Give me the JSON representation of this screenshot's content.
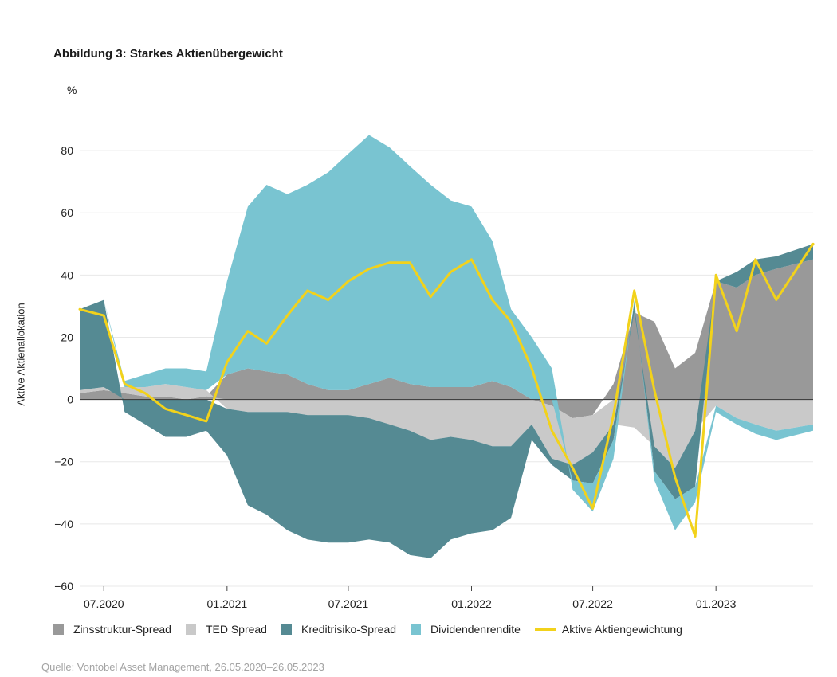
{
  "figure": {
    "title": "Abbildung 3: Starkes Aktienübergewicht",
    "unit": "%",
    "source": "Quelle: Vontobel Asset Management, 26.05.2020–26.05.2023"
  },
  "colors": {
    "zins": "#999999",
    "ted": "#c9c9c9",
    "kredit": "#558a93",
    "div": "#79c4d1",
    "line": "#f2d21b"
  },
  "chart_data": {
    "type": "area",
    "title": "Abbildung 3: Starkes Aktienübergewicht",
    "ylabel": "Aktive Aktienallokation",
    "yunit": "%",
    "ylim": [
      -60,
      90
    ],
    "yticks": [
      80,
      60,
      40,
      20,
      0,
      -20,
      -40,
      -60
    ],
    "ytick_labels": [
      "80",
      "60",
      "40",
      "20",
      "0",
      "−20",
      "−40",
      "−60"
    ],
    "xlim": [
      "2020-05-26",
      "2023-05-26"
    ],
    "xticks": [
      "2020-07-01",
      "2021-01-01",
      "2021-07-01",
      "2022-01-01",
      "2022-07-01",
      "2023-01-01"
    ],
    "xtick_labels": [
      "07.2020",
      "01.2021",
      "07.2021",
      "01.2022",
      "07.2022",
      "01.2023"
    ],
    "grid": "horizontal",
    "legend_position": "bottom",
    "x": [
      "2020-05-26",
      "2020-07-01",
      "2020-08-01",
      "2020-09-01",
      "2020-10-01",
      "2020-11-01",
      "2020-12-01",
      "2021-01-01",
      "2021-02-01",
      "2021-03-01",
      "2021-04-01",
      "2021-05-01",
      "2021-06-01",
      "2021-07-01",
      "2021-08-01",
      "2021-09-01",
      "2021-10-01",
      "2021-11-01",
      "2021-12-01",
      "2022-01-01",
      "2022-02-01",
      "2022-03-01",
      "2022-04-01",
      "2022-05-01",
      "2022-06-01",
      "2022-07-01",
      "2022-08-01",
      "2022-09-01",
      "2022-10-01",
      "2022-11-01",
      "2022-12-01",
      "2023-01-01",
      "2023-02-01",
      "2023-03-01",
      "2023-04-01",
      "2023-05-26"
    ],
    "series": [
      {
        "name": "Zinsstruktur-Spread",
        "color_key": "zins",
        "values": [
          2,
          3,
          2,
          1,
          1,
          0,
          1,
          8,
          10,
          9,
          8,
          5,
          3,
          3,
          5,
          7,
          5,
          4,
          4,
          4,
          6,
          4,
          0,
          -2,
          -6,
          -5,
          5,
          28,
          25,
          10,
          15,
          38,
          36,
          40,
          42,
          45
        ]
      },
      {
        "name": "TED Spread",
        "color_key": "ted",
        "values": [
          1,
          1,
          2,
          3,
          4,
          4,
          2,
          -3,
          -4,
          -4,
          -4,
          -5,
          -5,
          -5,
          -6,
          -8,
          -10,
          -13,
          -12,
          -13,
          -15,
          -15,
          -8,
          -17,
          -15,
          -12,
          -8,
          -9,
          -15,
          -22,
          -10,
          -2,
          -6,
          -8,
          -10,
          -8
        ]
      },
      {
        "name": "Kreditrisiko-Spread",
        "color_key": "kredit",
        "values": [
          26,
          28,
          -4,
          -8,
          -12,
          -12,
          -10,
          -15,
          -30,
          -33,
          -38,
          -40,
          -41,
          -41,
          -39,
          -38,
          -40,
          -38,
          -33,
          -30,
          -27,
          -23,
          -5,
          -2,
          -5,
          -10,
          -5,
          3,
          -8,
          -10,
          -18,
          0,
          5,
          5,
          4,
          5
        ]
      },
      {
        "name": "Dividendenrendite",
        "color_key": "div",
        "values": [
          0,
          0,
          2,
          4,
          5,
          6,
          6,
          30,
          52,
          60,
          58,
          64,
          70,
          76,
          80,
          74,
          70,
          65,
          60,
          58,
          45,
          25,
          20,
          10,
          -3,
          -9,
          -6,
          1,
          -3,
          -10,
          -5,
          -2,
          -2,
          -3,
          -3,
          -2
        ]
      },
      {
        "name": "Aktive Aktiengewichtung",
        "color_key": "line",
        "kind": "line",
        "values": [
          29,
          27,
          5,
          2,
          -3,
          -5,
          -7,
          12,
          22,
          18,
          27,
          35,
          32,
          38,
          42,
          44,
          44,
          33,
          41,
          45,
          32,
          25,
          10,
          -10,
          -22,
          -35,
          -5,
          35,
          3,
          -25,
          -44,
          40,
          22,
          45,
          32,
          50
        ]
      }
    ]
  },
  "legend": [
    {
      "label": "Zinsstruktur-Spread",
      "color_key": "zins",
      "kind": "area"
    },
    {
      "label": "TED Spread",
      "color_key": "ted",
      "kind": "area"
    },
    {
      "label": "Kreditrisiko-Spread",
      "color_key": "kredit",
      "kind": "area"
    },
    {
      "label": "Dividendenrendite",
      "color_key": "div",
      "kind": "area"
    },
    {
      "label": "Aktive Aktiengewichtung",
      "color_key": "line",
      "kind": "line"
    }
  ]
}
